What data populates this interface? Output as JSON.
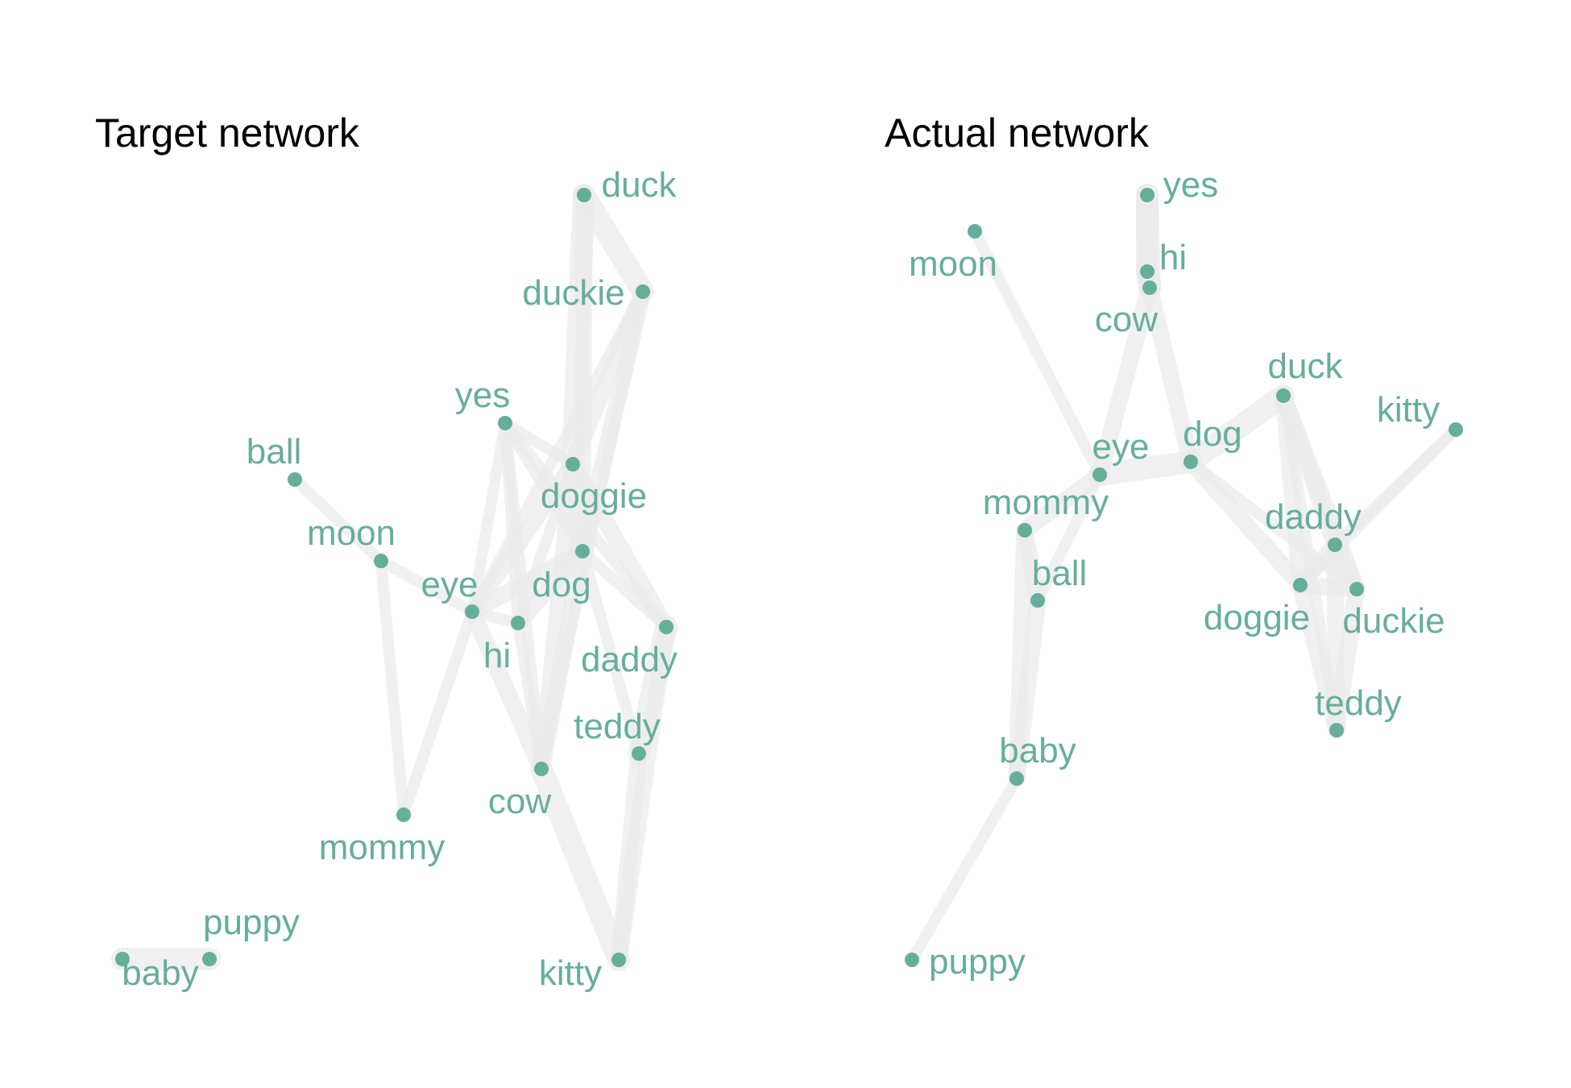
{
  "style": {
    "node_color": "#66ae9c",
    "edge_color": "#ebebeb"
  },
  "panels": [
    {
      "title": "Target network",
      "nodes": [
        {
          "id": "duck",
          "label": "duck"
        },
        {
          "id": "duckie",
          "label": "duckie"
        },
        {
          "id": "yes",
          "label": "yes"
        },
        {
          "id": "ball",
          "label": "ball"
        },
        {
          "id": "doggie",
          "label": "doggie"
        },
        {
          "id": "moon",
          "label": "moon"
        },
        {
          "id": "dog",
          "label": "dog"
        },
        {
          "id": "eye",
          "label": "eye"
        },
        {
          "id": "hi",
          "label": "hi"
        },
        {
          "id": "daddy",
          "label": "daddy"
        },
        {
          "id": "teddy",
          "label": "teddy"
        },
        {
          "id": "cow",
          "label": "cow"
        },
        {
          "id": "mommy",
          "label": "mommy"
        },
        {
          "id": "puppy",
          "label": "puppy"
        },
        {
          "id": "baby",
          "label": "baby"
        },
        {
          "id": "kitty",
          "label": "kitty"
        }
      ],
      "edges": [
        {
          "source": "duck",
          "target": "duckie",
          "weight": 4
        },
        {
          "source": "duck",
          "target": "doggie",
          "weight": 4
        },
        {
          "source": "duck",
          "target": "dog",
          "weight": 3
        },
        {
          "source": "duckie",
          "target": "doggie",
          "weight": 3
        },
        {
          "source": "duckie",
          "target": "dog",
          "weight": 3
        },
        {
          "source": "duckie",
          "target": "eye",
          "weight": 2
        },
        {
          "source": "duckie",
          "target": "cow",
          "weight": 2
        },
        {
          "source": "yes",
          "target": "doggie",
          "weight": 2
        },
        {
          "source": "yes",
          "target": "dog",
          "weight": 2
        },
        {
          "source": "yes",
          "target": "eye",
          "weight": 2
        },
        {
          "source": "yes",
          "target": "hi",
          "weight": 2
        },
        {
          "source": "yes",
          "target": "cow",
          "weight": 2
        },
        {
          "source": "yes",
          "target": "daddy",
          "weight": 2
        },
        {
          "source": "ball",
          "target": "moon",
          "weight": 2
        },
        {
          "source": "moon",
          "target": "eye",
          "weight": 2
        },
        {
          "source": "moon",
          "target": "mommy",
          "weight": 2
        },
        {
          "source": "doggie",
          "target": "dog",
          "weight": 4
        },
        {
          "source": "doggie",
          "target": "eye",
          "weight": 3
        },
        {
          "source": "doggie",
          "target": "hi",
          "weight": 2
        },
        {
          "source": "doggie",
          "target": "daddy",
          "weight": 3
        },
        {
          "source": "doggie",
          "target": "cow",
          "weight": 3
        },
        {
          "source": "dog",
          "target": "eye",
          "weight": 3
        },
        {
          "source": "dog",
          "target": "hi",
          "weight": 3
        },
        {
          "source": "dog",
          "target": "cow",
          "weight": 3
        },
        {
          "source": "dog",
          "target": "teddy",
          "weight": 2
        },
        {
          "source": "dog",
          "target": "daddy",
          "weight": 2
        },
        {
          "source": "eye",
          "target": "hi",
          "weight": 2
        },
        {
          "source": "eye",
          "target": "cow",
          "weight": 3
        },
        {
          "source": "eye",
          "target": "mommy",
          "weight": 2
        },
        {
          "source": "hi",
          "target": "cow",
          "weight": 2
        },
        {
          "source": "daddy",
          "target": "teddy",
          "weight": 4
        },
        {
          "source": "daddy",
          "target": "kitty",
          "weight": 3
        },
        {
          "source": "teddy",
          "target": "kitty",
          "weight": 3
        },
        {
          "source": "cow",
          "target": "kitty",
          "weight": 4
        },
        {
          "source": "baby",
          "target": "puppy",
          "weight": 4
        }
      ]
    },
    {
      "title": "Actual network",
      "nodes": [
        {
          "id": "yes",
          "label": "yes"
        },
        {
          "id": "moon",
          "label": "moon"
        },
        {
          "id": "hi",
          "label": "hi"
        },
        {
          "id": "cow",
          "label": "cow"
        },
        {
          "id": "duck",
          "label": "duck"
        },
        {
          "id": "kitty",
          "label": "kitty"
        },
        {
          "id": "eye",
          "label": "eye"
        },
        {
          "id": "dog",
          "label": "dog"
        },
        {
          "id": "mommy",
          "label": "mommy"
        },
        {
          "id": "daddy",
          "label": "daddy"
        },
        {
          "id": "ball",
          "label": "ball"
        },
        {
          "id": "doggie",
          "label": "doggie"
        },
        {
          "id": "duckie",
          "label": "duckie"
        },
        {
          "id": "teddy",
          "label": "teddy"
        },
        {
          "id": "baby",
          "label": "baby"
        },
        {
          "id": "puppy",
          "label": "puppy"
        }
      ],
      "edges": [
        {
          "source": "yes",
          "target": "hi",
          "weight": 4
        },
        {
          "source": "yes",
          "target": "cow",
          "weight": 4
        },
        {
          "source": "hi",
          "target": "cow",
          "weight": 4
        },
        {
          "source": "cow",
          "target": "eye",
          "weight": 3
        },
        {
          "source": "cow",
          "target": "dog",
          "weight": 3
        },
        {
          "source": "moon",
          "target": "eye",
          "weight": 2
        },
        {
          "source": "eye",
          "target": "dog",
          "weight": 4
        },
        {
          "source": "eye",
          "target": "mommy",
          "weight": 3
        },
        {
          "source": "eye",
          "target": "ball",
          "weight": 2
        },
        {
          "source": "dog",
          "target": "duck",
          "weight": 4
        },
        {
          "source": "dog",
          "target": "doggie",
          "weight": 3
        },
        {
          "source": "dog",
          "target": "duckie",
          "weight": 2
        },
        {
          "source": "duck",
          "target": "daddy",
          "weight": 3
        },
        {
          "source": "duck",
          "target": "doggie",
          "weight": 3
        },
        {
          "source": "duck",
          "target": "duckie",
          "weight": 3
        },
        {
          "source": "duck",
          "target": "teddy",
          "weight": 2
        },
        {
          "source": "kitty",
          "target": "daddy",
          "weight": 2
        },
        {
          "source": "kitty",
          "target": "doggie",
          "weight": 2
        },
        {
          "source": "daddy",
          "target": "doggie",
          "weight": 3
        },
        {
          "source": "daddy",
          "target": "duckie",
          "weight": 3
        },
        {
          "source": "daddy",
          "target": "teddy",
          "weight": 3
        },
        {
          "source": "doggie",
          "target": "duckie",
          "weight": 3
        },
        {
          "source": "doggie",
          "target": "teddy",
          "weight": 3
        },
        {
          "source": "duckie",
          "target": "teddy",
          "weight": 3
        },
        {
          "source": "mommy",
          "target": "ball",
          "weight": 3
        },
        {
          "source": "mommy",
          "target": "baby",
          "weight": 3
        },
        {
          "source": "ball",
          "target": "baby",
          "weight": 3
        },
        {
          "source": "baby",
          "target": "puppy",
          "weight": 2
        }
      ]
    }
  ]
}
